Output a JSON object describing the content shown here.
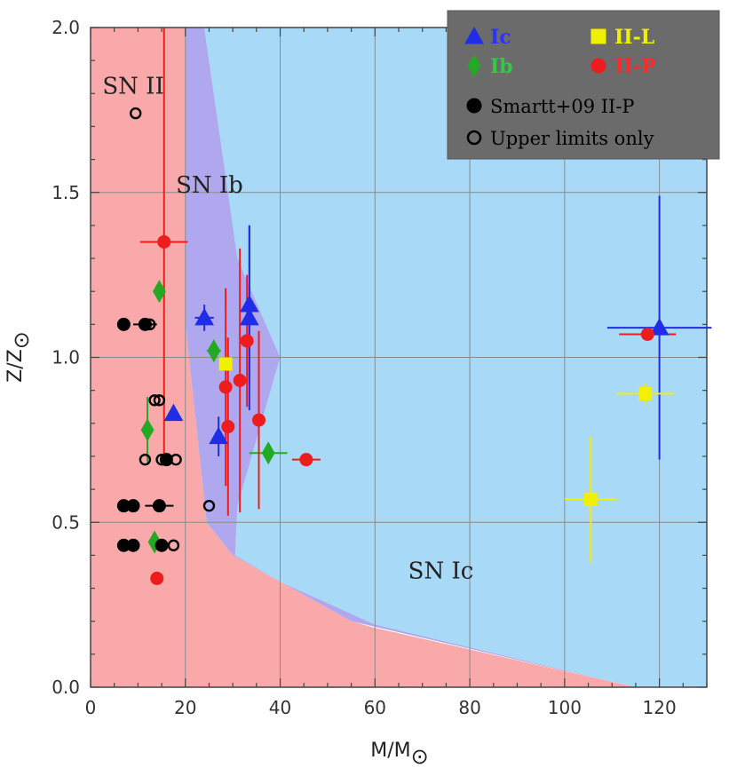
{
  "chart_data": {
    "type": "scatter",
    "xlabel": "M/M",
    "xlabel_sub": "⊙",
    "ylabel": "Z/Z",
    "ylabel_sub": "⊙",
    "xlim": [
      0,
      130
    ],
    "ylim": [
      0,
      2.0
    ],
    "xticks": [
      "0",
      "20",
      "40",
      "60",
      "80",
      "100",
      "120"
    ],
    "yticks": [
      "0.0",
      "0.5",
      "1.0",
      "1.5",
      "2.0"
    ],
    "grid": true,
    "regions": [
      {
        "name": "SN II",
        "label": "SN II",
        "color": "#f9a9aa",
        "polygon": [
          [
            0,
            0
          ],
          [
            0,
            2.0
          ],
          [
            20,
            2.0
          ],
          [
            20,
            1.1
          ],
          [
            24.5,
            0.5
          ],
          [
            30,
            0.4
          ],
          [
            55,
            0.2
          ],
          [
            60,
            0.18
          ],
          [
            115,
            0
          ],
          [
            0,
            0
          ]
        ]
      },
      {
        "name": "SN Ib",
        "label": "SN Ib",
        "color": "#b0a8ee",
        "polygon": [
          [
            20,
            2.0
          ],
          [
            24,
            2.0
          ],
          [
            31,
            1.3
          ],
          [
            40,
            1.0
          ],
          [
            31,
            0.55
          ],
          [
            30.5,
            0.4
          ],
          [
            40,
            0.32
          ],
          [
            60,
            0.19
          ],
          [
            115,
            0
          ],
          [
            55,
            0.2
          ],
          [
            30,
            0.4
          ],
          [
            24.5,
            0.5
          ],
          [
            20,
            1.1
          ]
        ]
      },
      {
        "name": "SN Ic",
        "label": "SN Ic",
        "color": "#a8d9f7",
        "polygon": [
          [
            24,
            2.0
          ],
          [
            130,
            2.0
          ],
          [
            130,
            0
          ],
          [
            115,
            0
          ],
          [
            60,
            0.19
          ],
          [
            40,
            0.32
          ],
          [
            30.5,
            0.4
          ],
          [
            31,
            0.55
          ],
          [
            40,
            1.0
          ],
          [
            31,
            1.3
          ]
        ]
      }
    ],
    "series": [
      {
        "name": "Ic",
        "marker": "triangle",
        "filled": true,
        "color": "#1f2ee6",
        "points": [
          {
            "x": 24,
            "y": 1.12,
            "xerr": 2,
            "yerr": 0.04
          },
          {
            "x": 17.5,
            "y": 0.83
          },
          {
            "x": 27,
            "y": 0.76,
            "xerr": 1,
            "yerr": 0.06
          },
          {
            "x": 33.5,
            "y": 1.16,
            "yerr": 0.24
          },
          {
            "x": 33.5,
            "y": 1.12,
            "yerr": 0.28
          },
          {
            "x": 120,
            "y": 1.09,
            "xerr": 11,
            "yerr": 0.4
          }
        ]
      },
      {
        "name": "Ib",
        "marker": "diamond",
        "filled": true,
        "color": "#22aa22",
        "points": [
          {
            "x": 14.5,
            "y": 1.2
          },
          {
            "x": 26,
            "y": 1.02,
            "xerr": 1.5
          },
          {
            "x": 12,
            "y": 0.78,
            "yerr": 0.1
          },
          {
            "x": 37.5,
            "y": 0.71,
            "xerr": 4
          },
          {
            "x": 13.5,
            "y": 0.44
          }
        ]
      },
      {
        "name": "II-L",
        "marker": "square",
        "filled": true,
        "color": "#f0f000",
        "points": [
          {
            "x": 28.5,
            "y": 0.98
          },
          {
            "x": 117,
            "y": 0.89,
            "xerr": 6,
            "yerr": 0.03
          },
          {
            "x": 105.5,
            "y": 0.57,
            "xerr": 5.5,
            "yerr": 0.19
          }
        ]
      },
      {
        "name": "II-P",
        "marker": "circle",
        "filled": true,
        "color": "#ee1c1c",
        "points": [
          {
            "x": 15.5,
            "y": 1.35,
            "xerr": 5,
            "yerr": 0.65
          },
          {
            "x": 33,
            "y": 1.05,
            "yerr": 0.2
          },
          {
            "x": 28.5,
            "y": 0.91,
            "yerr": 0.3
          },
          {
            "x": 31.5,
            "y": 0.93,
            "yerr": 0.4
          },
          {
            "x": 29,
            "y": 0.79,
            "yerr": 0.27
          },
          {
            "x": 35.5,
            "y": 0.81,
            "yerr": 0.27
          },
          {
            "x": 45.5,
            "y": 0.69,
            "xerr": 3
          },
          {
            "x": 117.5,
            "y": 1.07,
            "xerr": 6
          },
          {
            "x": 14,
            "y": 0.33
          }
        ]
      },
      {
        "name": "Smartt+09 II-P",
        "marker": "circle",
        "filled": true,
        "color": "#000000",
        "points": [
          {
            "x": 7,
            "y": 1.1,
            "xerr": 1
          },
          {
            "x": 11.5,
            "y": 1.1,
            "xerr": 2.5
          },
          {
            "x": 16,
            "y": 0.69,
            "xerr": 1
          },
          {
            "x": 7,
            "y": 0.55,
            "xerr": 1
          },
          {
            "x": 9,
            "y": 0.55,
            "xerr": 1
          },
          {
            "x": 14.5,
            "y": 0.55,
            "xerr": 3
          },
          {
            "x": 7,
            "y": 0.43,
            "xerr": 1
          },
          {
            "x": 9,
            "y": 0.43,
            "xerr": 1
          },
          {
            "x": 15,
            "y": 0.43,
            "xerr": 1.5
          }
        ]
      },
      {
        "name": "Upper limits only",
        "marker": "circle",
        "filled": false,
        "color": "#000000",
        "points": [
          {
            "x": 9.5,
            "y": 1.74
          },
          {
            "x": 12.5,
            "y": 1.1
          },
          {
            "x": 13.5,
            "y": 0.87
          },
          {
            "x": 14.5,
            "y": 0.87
          },
          {
            "x": 11.5,
            "y": 0.69
          },
          {
            "x": 15,
            "y": 0.69
          },
          {
            "x": 18,
            "y": 0.69
          },
          {
            "x": 25,
            "y": 0.55
          },
          {
            "x": 17.5,
            "y": 0.43
          }
        ]
      }
    ],
    "legend": {
      "placement": "top-right",
      "background": "#6b6b6b",
      "entries": [
        {
          "label": "Ic",
          "marker": "triangle",
          "color": "#1f2ee6",
          "text_color": "#2a33ff"
        },
        {
          "label": "II-L",
          "marker": "square",
          "color": "#f0f000",
          "text_color": "#f0f000"
        },
        {
          "label": "Ib",
          "marker": "diamond",
          "color": "#22aa22",
          "text_color": "#2ecc40"
        },
        {
          "label": "II-P",
          "marker": "circle",
          "color": "#ee1c1c",
          "text_color": "#ff2a2a"
        },
        {
          "label": "Smartt+09 II-P",
          "marker": "circle",
          "color": "#000000",
          "text_color": "#000000"
        },
        {
          "label": "Upper limits only",
          "marker": "circle-open",
          "color": "#000000",
          "text_color": "#000000"
        }
      ]
    },
    "region_labels": [
      "SN II",
      "SN Ib",
      "SN Ic"
    ]
  }
}
